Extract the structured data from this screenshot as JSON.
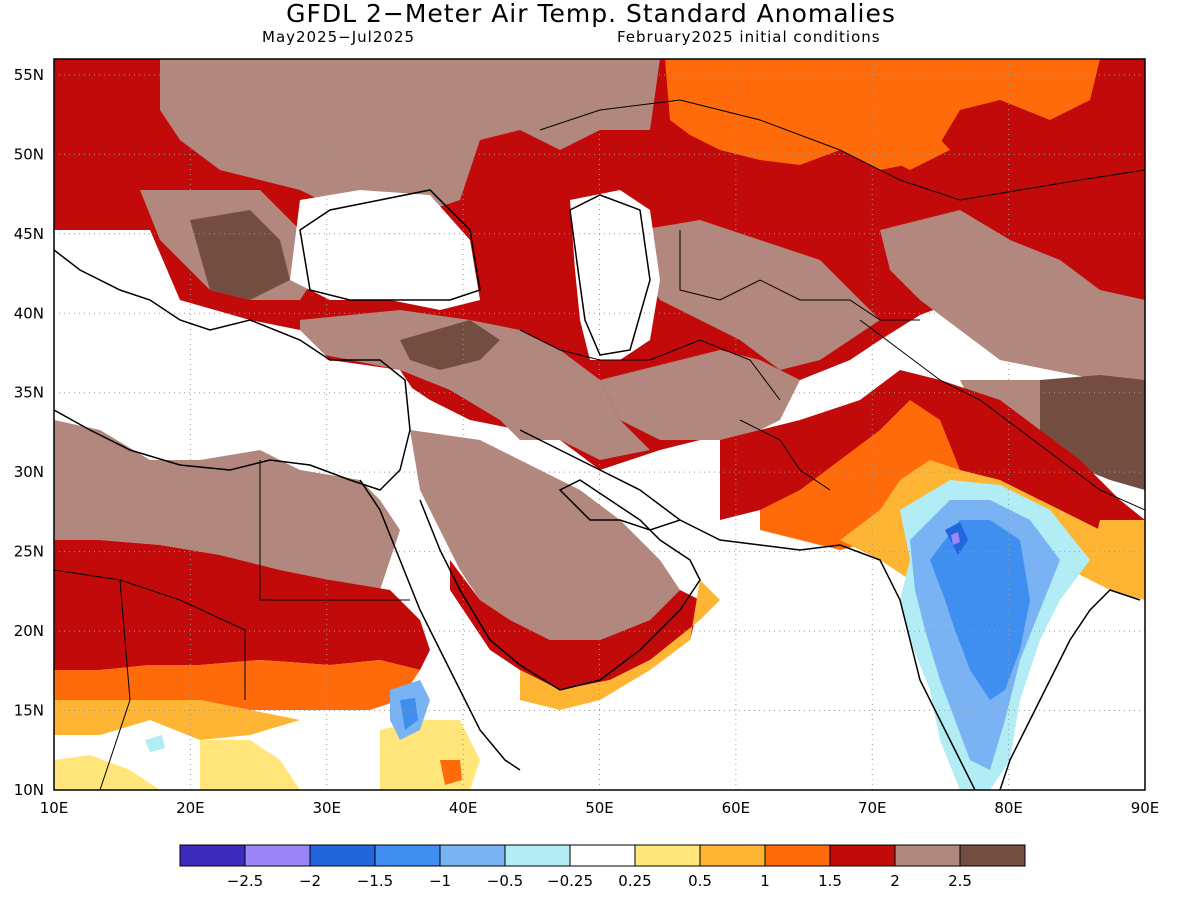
{
  "title": "GFDL 2−Meter Air Temp. Standard Anomalies",
  "valid_period": "May2025−Jul2025",
  "initial_conditions": "February2025 initial conditions",
  "axes": {
    "lon_labels": [
      "10E",
      "20E",
      "30E",
      "40E",
      "50E",
      "60E",
      "70E",
      "80E",
      "90E"
    ],
    "lat_labels": [
      "10N",
      "15N",
      "20N",
      "25N",
      "30N",
      "35N",
      "40N",
      "45N",
      "50N",
      "55N"
    ],
    "lon_range": [
      10,
      90
    ],
    "lat_range": [
      10,
      56
    ]
  },
  "colorbar": {
    "colors": [
      "#3d2bbd",
      "#9b86f7",
      "#2366dc",
      "#3e8ff0",
      "#79b3f3",
      "#b2ecf4",
      "#ffffff",
      "#ffe57a",
      "#ffb534",
      "#ff6a0a",
      "#c20a0a",
      "#b2877d",
      "#724d40"
    ],
    "labels": [
      "−2.5",
      "−2",
      "−1.5",
      "−1",
      "−0.5",
      "−0.25",
      "0.25",
      "0.5",
      "1",
      "1.5",
      "2",
      "2.5"
    ]
  }
}
